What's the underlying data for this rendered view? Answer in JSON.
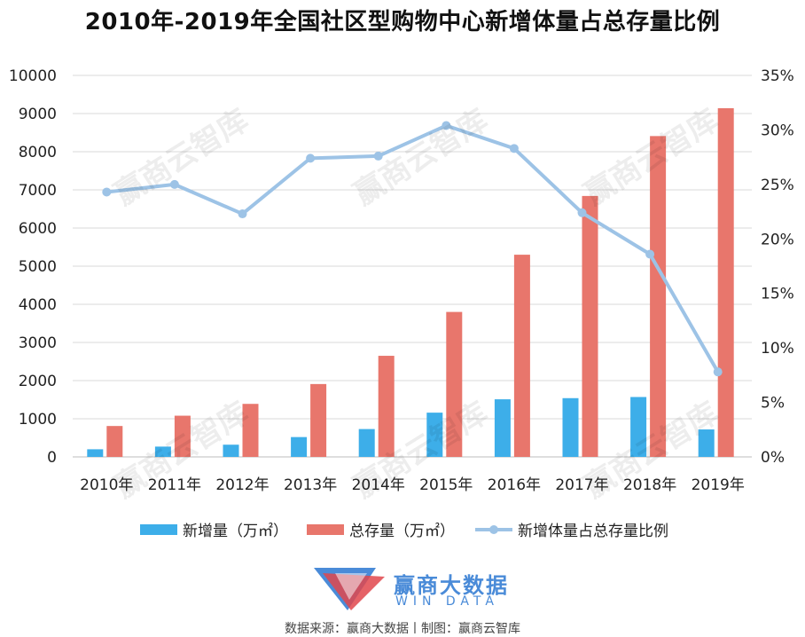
{
  "title": "2010年-2019年全国社区型购物中心新增体量占总存量比例",
  "colors": {
    "new_bar": "#3daee9",
    "total_bar": "#e8766c",
    "ratio_line": "#9dc3e6"
  },
  "chart_data": {
    "type": "bar",
    "categories": [
      "2010年",
      "2011年",
      "2012年",
      "2013年",
      "2014年",
      "2015年",
      "2016年",
      "2017年",
      "2018年",
      "2019年"
    ],
    "series": [
      {
        "name": "新增量（万㎡）",
        "type": "bar",
        "axis": "left",
        "values": [
          200,
          270,
          320,
          520,
          730,
          1160,
          1510,
          1540,
          1570,
          720
        ]
      },
      {
        "name": "总存量（万㎡）",
        "type": "bar",
        "axis": "left",
        "values": [
          810,
          1080,
          1390,
          1910,
          2650,
          3800,
          5300,
          6840,
          8410,
          9140
        ]
      },
      {
        "name": "新增体量占总存量比例",
        "type": "line",
        "axis": "right",
        "values": [
          24.3,
          25.0,
          22.3,
          27.4,
          27.6,
          30.4,
          28.3,
          22.4,
          18.6,
          7.8
        ]
      }
    ],
    "y_left": {
      "min": 0,
      "max": 10000,
      "ticks": [
        "0",
        "1000",
        "2000",
        "3000",
        "4000",
        "5000",
        "6000",
        "7000",
        "8000",
        "9000",
        "10000"
      ]
    },
    "y_right": {
      "min": 0,
      "max": 35,
      "ticks": [
        "0%",
        "5%",
        "10%",
        "15%",
        "20%",
        "25%",
        "30%",
        "35%"
      ]
    },
    "grid": true,
    "legend_position": "bottom"
  },
  "legend": {
    "new": "新增量（万㎡）",
    "total": "总存量（万㎡）",
    "ratio": "新增体量占总存量比例"
  },
  "watermark": "赢商云智库",
  "logo": {
    "cn": "赢商大数据",
    "en": "WIN DATA"
  },
  "source": "数据来源：赢商大数据丨制图：赢商云智库"
}
